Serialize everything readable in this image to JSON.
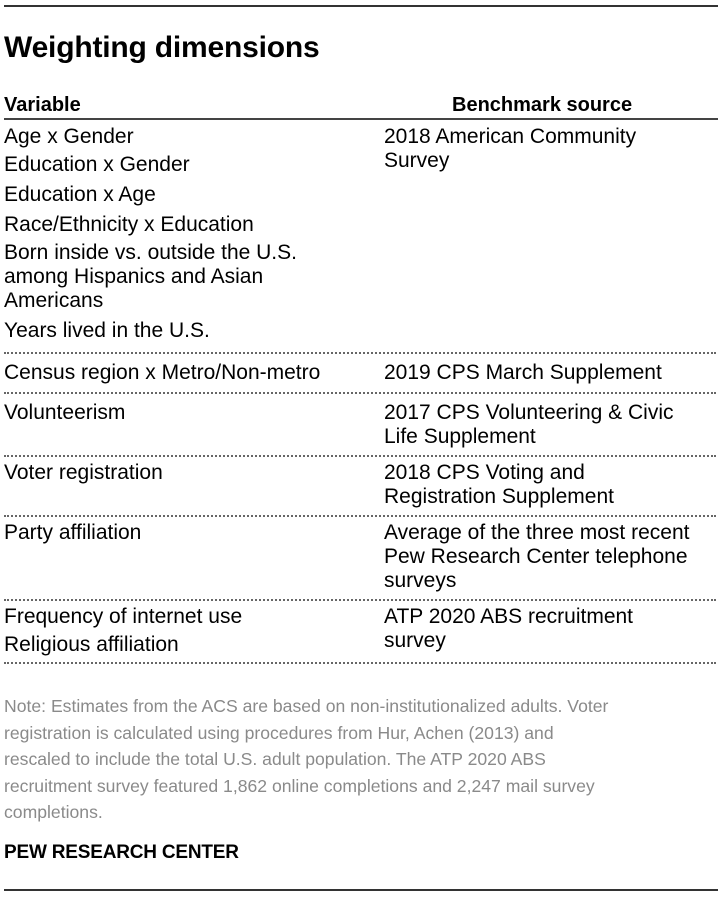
{
  "title": "Weighting dimensions",
  "table": {
    "headers": {
      "variable": "Variable",
      "source": "Benchmark source"
    },
    "groups": [
      {
        "variables": [
          "Age x Gender",
          "Education x Gender",
          "Education x Age",
          "Race/Ethnicity x Education",
          [
            "Born inside vs. outside the U.S.",
            "among Hispanics and Asian",
            "Americans"
          ],
          "Years lived in the U.S."
        ],
        "source": [
          "2018 American Community",
          "Survey"
        ]
      },
      {
        "variables": [
          "Census region x Metro/Non-metro"
        ],
        "source": [
          "2019 CPS March Supplement"
        ]
      },
      {
        "variables": [
          "Volunteerism"
        ],
        "source": [
          "2017 CPS Volunteering & Civic",
          "Life Supplement"
        ]
      },
      {
        "variables": [
          "Voter registration"
        ],
        "source": [
          "2018 CPS Voting and",
          "Registration Supplement"
        ]
      },
      {
        "variables": [
          "Party affiliation"
        ],
        "source": [
          "Average of the three most recent",
          "Pew Research Center telephone",
          "surveys"
        ]
      },
      {
        "variables": [
          "Frequency of internet use",
          "Religious affiliation"
        ],
        "source": [
          "ATP 2020 ABS recruitment",
          "survey"
        ]
      }
    ]
  },
  "note": [
    "Note: Estimates from the ACS are based on non-institutionalized adults. Voter",
    "registration is calculated using procedures from Hur, Achen (2013) and",
    "rescaled to include the total U.S. adult population. The ATP 2020 ABS",
    "recruitment survey featured 1,862 online completions and 2,247 mail survey",
    "completions."
  ],
  "source_label": "PEW RESEARCH CENTER"
}
